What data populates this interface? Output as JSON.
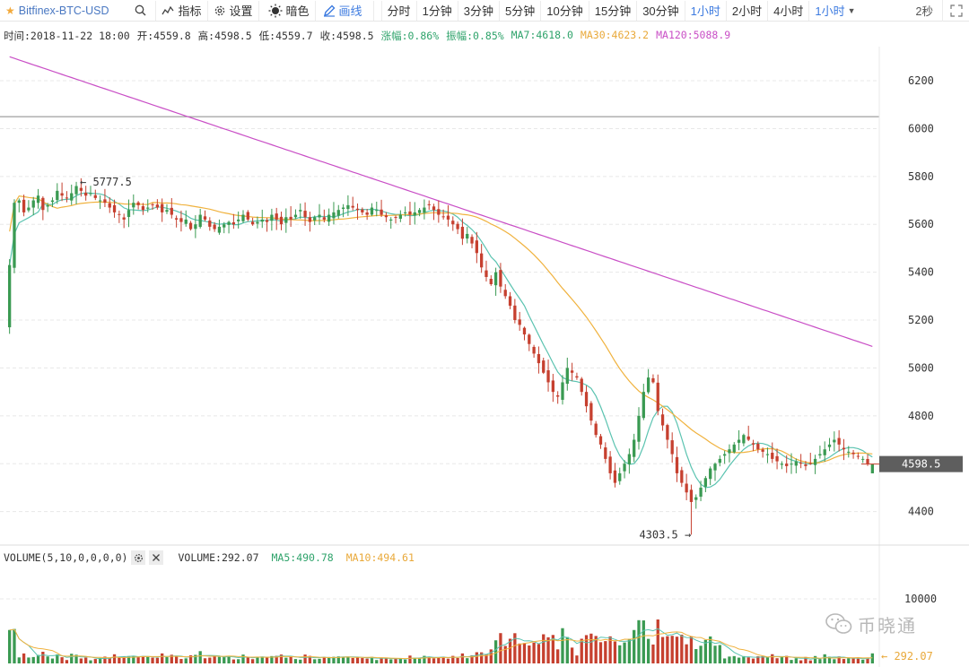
{
  "toolbar": {
    "symbol": "Bitfinex-BTC-USD",
    "indicators_label": "指标",
    "settings_label": "设置",
    "theme_label": "暗色",
    "draw_label": "画线",
    "intervals": [
      "分时",
      "1分钟",
      "3分钟",
      "5分钟",
      "10分钟",
      "15分钟",
      "30分钟",
      "1小时",
      "2小时",
      "4小时"
    ],
    "active_interval": "1小时",
    "interval_select": "1小时",
    "refresh": "2秒"
  },
  "info": {
    "time": "时间:2018-11-22 18:00",
    "open": "开:4559.8",
    "high": "高:4598.5",
    "low": "低:4559.7",
    "close": "收:4598.5",
    "change": "涨幅:0.86%",
    "amplitude": "振幅:0.85%",
    "ma7": "MA7:4618.0",
    "ma30": "MA30:4623.2",
    "ma120": "MA120:5088.9"
  },
  "volume_header": {
    "title": "VOLUME(5,10,0,0,0,0)",
    "value": "VOLUME:292.07",
    "ma5": "MA5:490.78",
    "ma10": "MA10:494.61"
  },
  "watermark": "币晓通",
  "colors": {
    "up": "#3a9a52",
    "down": "#c6402f",
    "ma7": "#5ac3b0",
    "ma30": "#f0b23e",
    "ma120": "#c94fc6",
    "accent": "#3d7be0"
  },
  "chart_data": {
    "type": "candlestick",
    "price_ticks": [
      4400,
      4600,
      4800,
      5000,
      5200,
      5400,
      5600,
      5800,
      6000,
      6200
    ],
    "price_range": [
      4290,
      6320
    ],
    "horizontal_line": 6050,
    "last_price": 4598.5,
    "last_price_label": "4598.5",
    "max_label": "← 5777.5",
    "max_price": 5777.5,
    "min_label": "4303.5 →",
    "min_price": 4303.5,
    "volume_tick": 10000,
    "volume_tick_label": "10000",
    "volume_range": [
      0,
      15000
    ],
    "volume_last_label": "← 292.07",
    "closes": [
      5430,
      5690,
      5700,
      5650,
      5670,
      5700,
      5720,
      5660,
      5680,
      5700,
      5740,
      5720,
      5710,
      5730,
      5760,
      5740,
      5720,
      5730,
      5710,
      5700,
      5690,
      5670,
      5650,
      5640,
      5620,
      5660,
      5690,
      5680,
      5660,
      5670,
      5680,
      5670,
      5650,
      5660,
      5640,
      5620,
      5610,
      5620,
      5580,
      5600,
      5640,
      5620,
      5590,
      5580,
      5590,
      5600,
      5610,
      5600,
      5620,
      5640,
      5620,
      5600,
      5610,
      5620,
      5610,
      5640,
      5620,
      5600,
      5630,
      5620,
      5640,
      5660,
      5630,
      5610,
      5630,
      5640,
      5620,
      5640,
      5650,
      5660,
      5670,
      5680,
      5670,
      5660,
      5650,
      5640,
      5670,
      5660,
      5640,
      5630,
      5620,
      5630,
      5640,
      5650,
      5640,
      5650,
      5660,
      5670,
      5680,
      5660,
      5640,
      5630,
      5620,
      5600,
      5580,
      5540,
      5560,
      5520,
      5480,
      5420,
      5380,
      5350,
      5400,
      5340,
      5300,
      5260,
      5200,
      5180,
      5140,
      5100,
      5060,
      5020,
      4980,
      4940,
      4900,
      4880,
      4940,
      5000,
      4980,
      4960,
      4900,
      4840,
      4780,
      4720,
      4680,
      4620,
      4560,
      4520,
      4560,
      4600,
      4640,
      4700,
      4800,
      4900,
      4960,
      4940,
      4820,
      4760,
      4700,
      4640,
      4560,
      4520,
      4480,
      4440,
      4460,
      4500,
      4540,
      4580,
      4600,
      4620,
      4640,
      4660,
      4680,
      4700,
      4720,
      4700,
      4680,
      4660,
      4650,
      4640,
      4620,
      4610,
      4600,
      4590,
      4600,
      4610,
      4600,
      4590,
      4600,
      4620,
      4640,
      4660,
      4680,
      4700,
      4680,
      4660,
      4650,
      4640,
      4630,
      4620,
      4600,
      4598.5
    ],
    "series": [
      {
        "name": "MA7"
      },
      {
        "name": "MA30"
      },
      {
        "name": "MA120"
      }
    ]
  }
}
